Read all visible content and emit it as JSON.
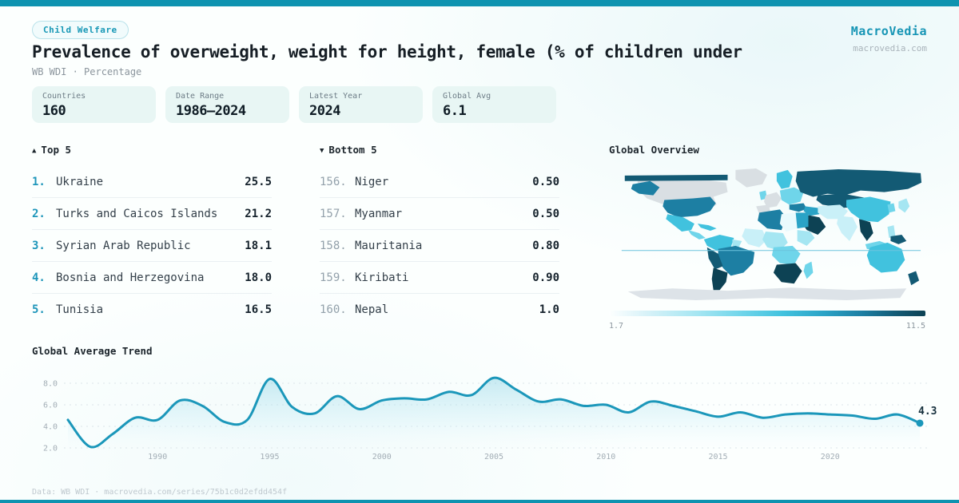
{
  "header": {
    "badge": "Child Welfare",
    "title": "Prevalence of overweight, weight for height, female (% of children under",
    "subtitle": "WB WDI · Percentage",
    "brand": "MacroVedia",
    "brand_domain": "macrovedia.com"
  },
  "stats": [
    {
      "label": "Countries",
      "value": "160"
    },
    {
      "label": "Date Range",
      "value": "1986—2024"
    },
    {
      "label": "Latest Year",
      "value": "2024"
    },
    {
      "label": "Global Avg",
      "value": "6.1"
    }
  ],
  "top5": {
    "arrow": "▲",
    "header": "Top 5",
    "rows": [
      {
        "rank": "1.",
        "name": "Ukraine",
        "value": "25.5"
      },
      {
        "rank": "2.",
        "name": "Turks and Caicos Islands",
        "value": "21.2"
      },
      {
        "rank": "3.",
        "name": "Syrian Arab Republic",
        "value": "18.1"
      },
      {
        "rank": "4.",
        "name": "Bosnia and Herzegovina",
        "value": "18.0"
      },
      {
        "rank": "5.",
        "name": "Tunisia",
        "value": "16.5"
      }
    ]
  },
  "bottom5": {
    "arrow": "▼",
    "header": "Bottom 5",
    "rows": [
      {
        "rank": "156.",
        "name": "Niger",
        "value": "0.50"
      },
      {
        "rank": "157.",
        "name": "Myanmar",
        "value": "0.50"
      },
      {
        "rank": "158.",
        "name": "Mauritania",
        "value": "0.80"
      },
      {
        "rank": "159.",
        "name": "Kiribati",
        "value": "0.90"
      },
      {
        "rank": "160.",
        "name": "Nepal",
        "value": "1.0"
      }
    ]
  },
  "map": {
    "title": "Global Overview",
    "legend_min": "1.7",
    "legend_max": "11.5",
    "palette": {
      "no_data": "#d9dfe3",
      "antarctic": "#dde3e8",
      "c1": "#eafafd",
      "c2": "#c9f0f8",
      "c3": "#a5e6f2",
      "c4": "#6fd5ea",
      "c5": "#41c2de",
      "c6": "#2aa3c6",
      "c7": "#1d7fa3",
      "c8": "#135a74",
      "c9": "#0d4254"
    },
    "regions": {
      "arctic-band": "c8",
      "alaska": "c7",
      "canada": "no_data",
      "greenland": "no_data",
      "usa": "c7",
      "mexico": "c5",
      "central-america": "c4",
      "caribbean": "c5",
      "colombia-venezuela": "c5",
      "guyana": "c3",
      "brazil": "c7",
      "peru-bolivia": "c8",
      "argentina-chile": "c9",
      "uk": "c4",
      "west-europe": "no_data",
      "iberia": "no_data",
      "scandinavia": "c5",
      "east-europe": "c4",
      "russia": "c8",
      "kazakhstan-mongolia": "c8",
      "turkey": "c7",
      "caucasus-iraq": "c6",
      "saudi-mideast": "c9",
      "iran-stans": "c2",
      "china": "c5",
      "india": "c2",
      "myanmar-thailand": "c9",
      "se-asia-islands": "c4",
      "indonesia-east": "c3",
      "philippines": "c3",
      "japan": "c3",
      "korea": "c4",
      "algeria": "c7",
      "libya": "c1",
      "egypt": "c6",
      "west-africa": "c2",
      "sahel": "c3",
      "central-africa": "c4",
      "horn-africa": "c3",
      "southern-africa": "c9",
      "madagascar": "c4",
      "australia": "c5",
      "new-zealand": "c8",
      "papua": "c8",
      "antarctica": "antarctic"
    },
    "equator_color": "#6cc3dd"
  },
  "chart_data": [
    {
      "type": "line",
      "title": "Global Average Trend",
      "x": [
        1986,
        1987,
        1988,
        1989,
        1990,
        1991,
        1992,
        1993,
        1994,
        1995,
        1996,
        1997,
        1998,
        1999,
        2000,
        2001,
        2002,
        2003,
        2004,
        2005,
        2006,
        2007,
        2008,
        2009,
        2010,
        2011,
        2012,
        2013,
        2014,
        2015,
        2016,
        2017,
        2018,
        2019,
        2020,
        2021,
        2022,
        2023,
        2024
      ],
      "values": [
        4.6,
        2.1,
        3.3,
        4.8,
        4.6,
        6.4,
        5.9,
        4.4,
        4.6,
        8.4,
        5.8,
        5.2,
        6.8,
        5.6,
        6.4,
        6.6,
        6.5,
        7.2,
        6.9,
        8.5,
        7.4,
        6.3,
        6.5,
        5.9,
        6.0,
        5.3,
        6.3,
        5.9,
        5.4,
        4.9,
        5.3,
        4.8,
        5.1,
        5.2,
        5.1,
        5.0,
        4.7,
        5.1,
        4.3
      ],
      "end_label": "4.3",
      "yticks": [
        2.0,
        4.0,
        6.0,
        8.0
      ],
      "xticks": [
        1990,
        1995,
        2000,
        2005,
        2010,
        2015,
        2020
      ],
      "ylim": [
        1.5,
        9.2
      ],
      "xlabel": "",
      "ylabel": "",
      "line_color": "#1b97ba",
      "grid": true,
      "legend": "none",
      "area": true
    },
    {
      "type": "heatmap",
      "title": "Global Overview",
      "scale_min": 1.7,
      "scale_max": 11.5,
      "note": "world choropleth, light-to-dark teal scale, gray = no data"
    }
  ],
  "footer": {
    "text": "Data: WB WDI · macrovedia.com/series/75b1c0d2efdd454f"
  },
  "colors": {
    "accent": "#0e93b0",
    "brand_text": "#1795b5",
    "card_bg": "#e8f6f4",
    "rank_accent": "#1e96ba",
    "muted_text": "#8b959d",
    "title_text": "#161e25"
  }
}
